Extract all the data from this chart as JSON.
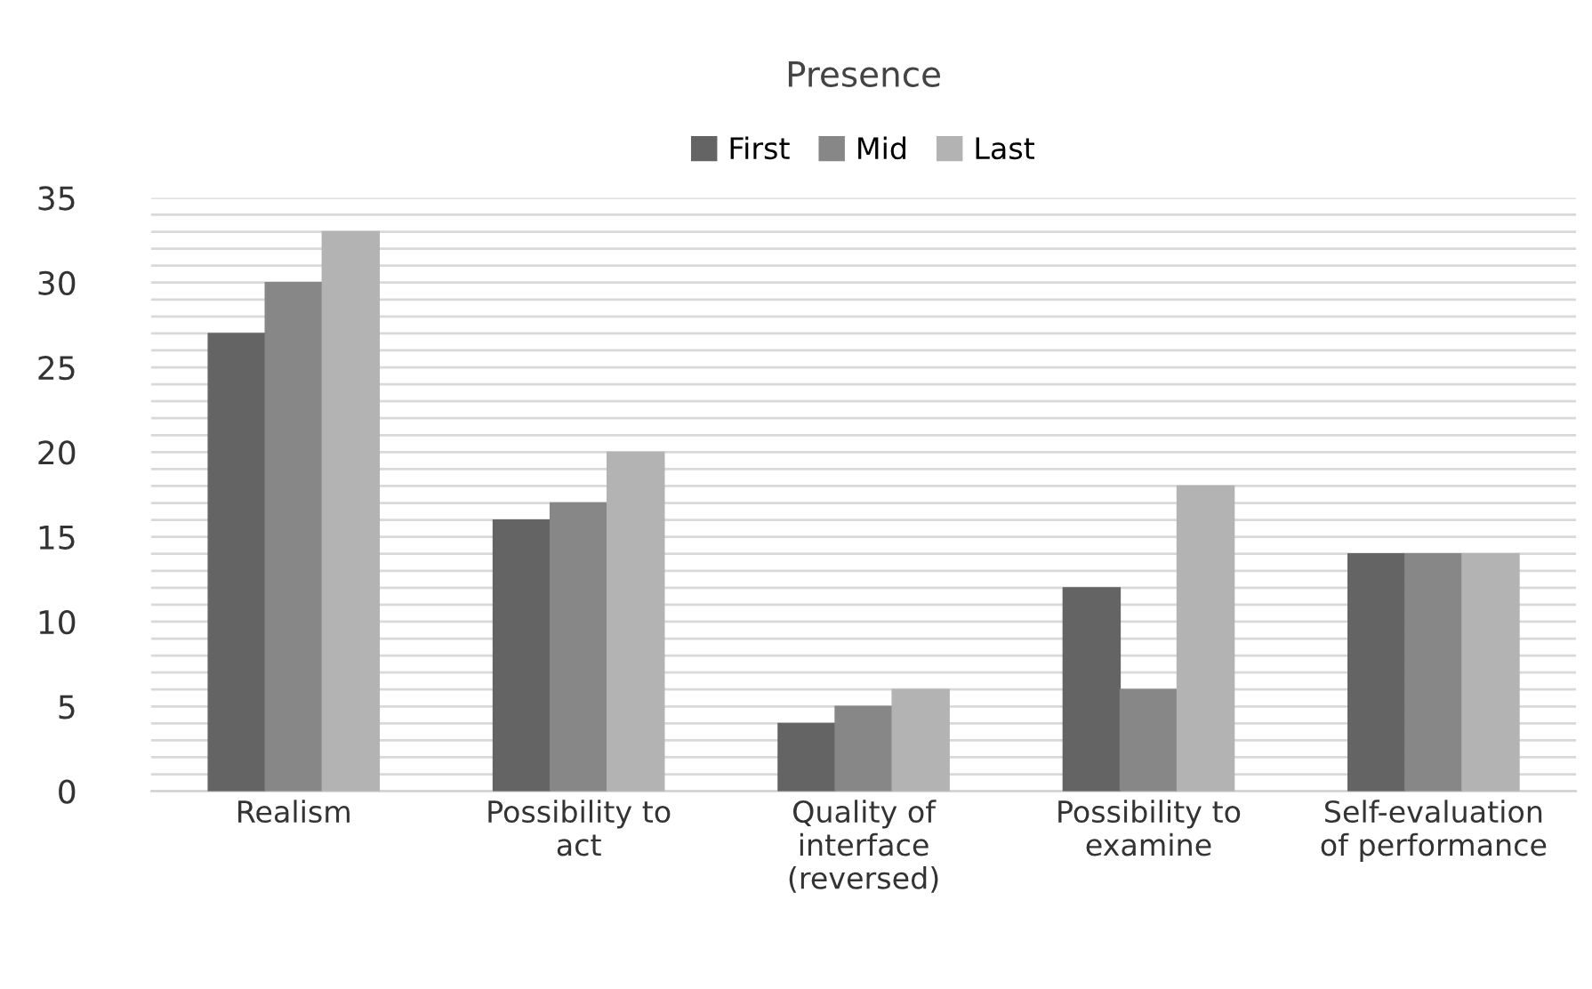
{
  "chart_data": {
    "type": "bar",
    "title": "Presence",
    "categories": [
      "Realism",
      "Possibility to\nact",
      "Quality of\ninterface\n(reversed)",
      "Possibility to\nexamine",
      "Self-evaluation\nof performance"
    ],
    "series": [
      {
        "name": "First",
        "color": "#646464",
        "values": [
          27,
          16,
          4,
          12,
          14
        ]
      },
      {
        "name": "Mid",
        "color": "#878787",
        "values": [
          30,
          17,
          5,
          6,
          14
        ]
      },
      {
        "name": "Last",
        "color": "#b3b3b3",
        "values": [
          33,
          20,
          6,
          18,
          14
        ]
      }
    ],
    "ylim": [
      0,
      35
    ],
    "yticks": [
      0,
      {
        "value": 1,
        "label": null
      },
      {
        "value": 2,
        "label": null
      },
      {
        "value": 3,
        "label": null
      },
      {
        "value": 4,
        "label": null
      },
      5,
      {
        "value": 6,
        "label": null
      },
      {
        "value": 7,
        "label": null
      },
      {
        "value": 8,
        "label": null
      },
      {
        "value": 9,
        "label": null
      },
      10,
      {
        "value": 11,
        "label": null
      },
      {
        "value": 12,
        "label": null
      },
      {
        "value": 13,
        "label": null
      },
      {
        "value": 14,
        "label": null
      },
      15,
      {
        "value": 16,
        "label": null
      },
      {
        "value": 17,
        "label": null
      },
      {
        "value": 18,
        "label": null
      },
      {
        "value": 19,
        "label": null
      },
      20,
      {
        "value": 21,
        "label": null
      },
      {
        "value": 22,
        "label": null
      },
      {
        "value": 23,
        "label": null
      },
      {
        "value": 24,
        "label": null
      },
      25,
      {
        "value": 26,
        "label": null
      },
      {
        "value": 27,
        "label": null
      },
      {
        "value": 28,
        "label": null
      },
      {
        "value": 29,
        "label": null
      },
      30,
      {
        "value": 31,
        "label": null
      },
      {
        "value": 32,
        "label": null
      },
      {
        "value": 33,
        "label": null
      },
      {
        "value": 34,
        "label": null
      },
      35
    ],
    "grid": "y",
    "legend": "top"
  }
}
